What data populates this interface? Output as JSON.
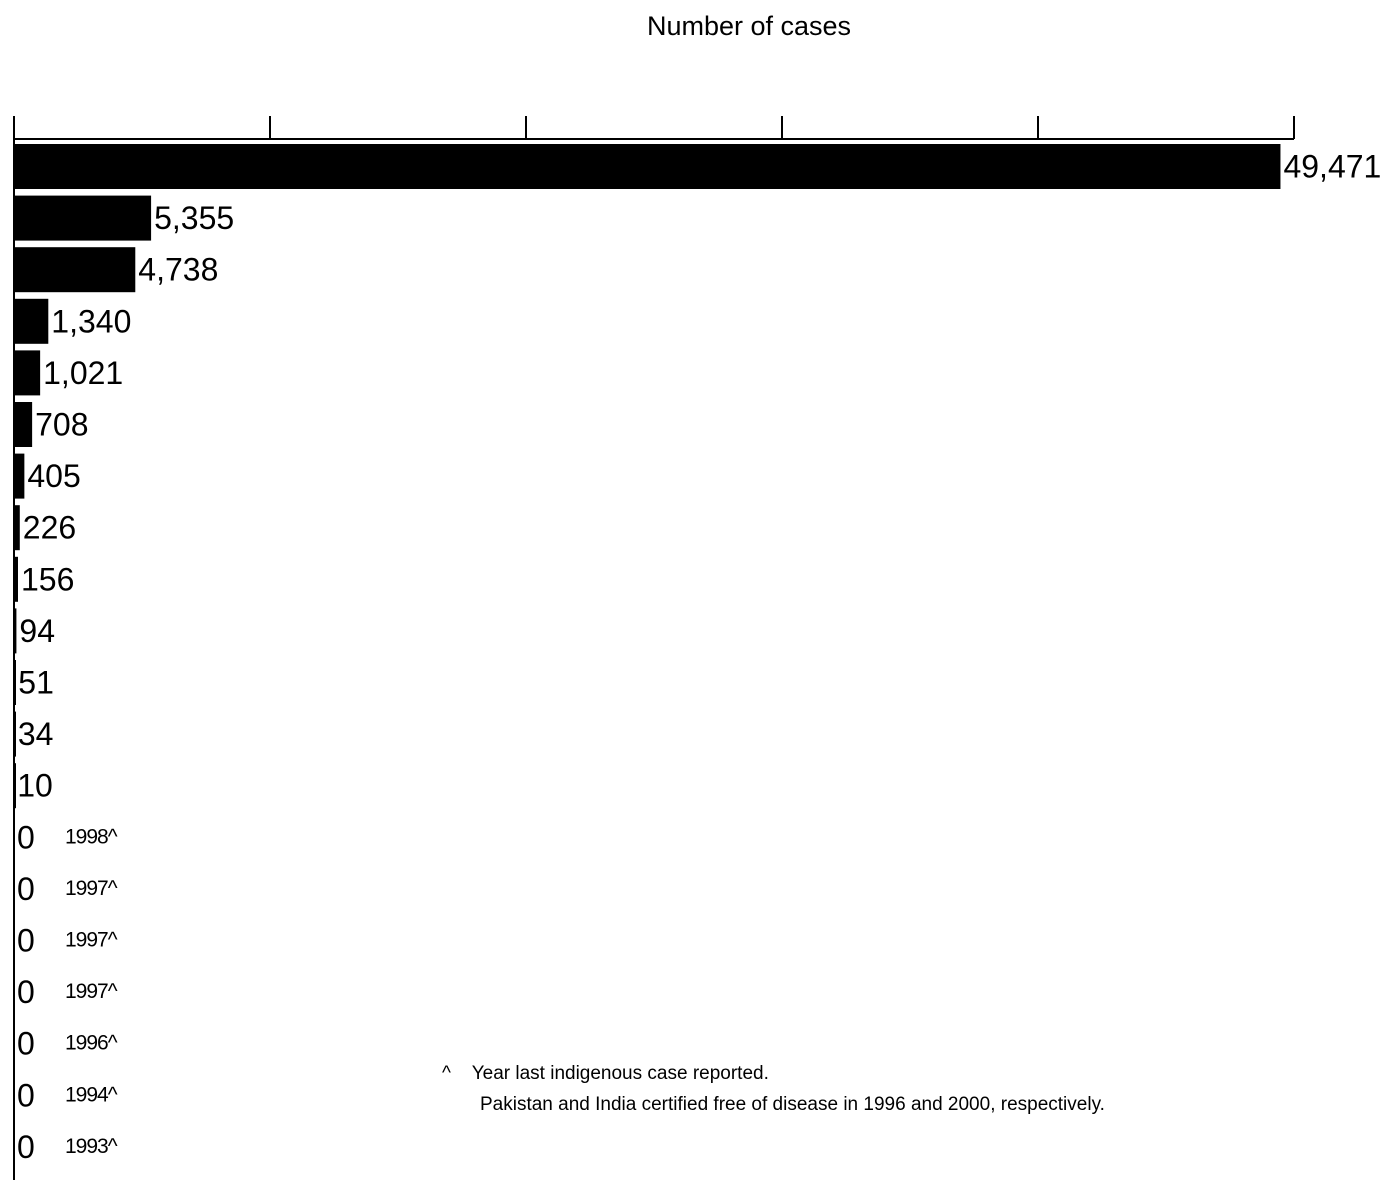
{
  "chart_data": {
    "type": "bar",
    "orientation": "horizontal",
    "xlabel": "Number of cases",
    "xlim": [
      0,
      50000
    ],
    "tick_count": 5,
    "grid": false,
    "values": [
      49471,
      5355,
      4738,
      1340,
      1021,
      708,
      405,
      226,
      156,
      94,
      51,
      34,
      10,
      0,
      0,
      0,
      0,
      0,
      0,
      0
    ],
    "value_labels": [
      "49,471",
      "5,355",
      "4,738",
      "1,340",
      "1,021",
      "708",
      "405",
      "226",
      "156",
      "94",
      "51",
      "34",
      "10",
      "0",
      "0",
      "0",
      "0",
      "0",
      "0",
      "0"
    ],
    "annotations": [
      "",
      "",
      "",
      "",
      "",
      "",
      "",
      "",
      "",
      "",
      "",
      "",
      "",
      "1998^",
      "1997^",
      "1997^",
      "1997^",
      "1996^",
      "1994^",
      "1993^"
    ],
    "colors": {
      "bar": "#000000"
    }
  },
  "footnote": {
    "marker": "^",
    "line1": "Year last indigenous case reported.",
    "line2": "Pakistan and India certified free of disease in 1996 and 2000, respectively."
  }
}
